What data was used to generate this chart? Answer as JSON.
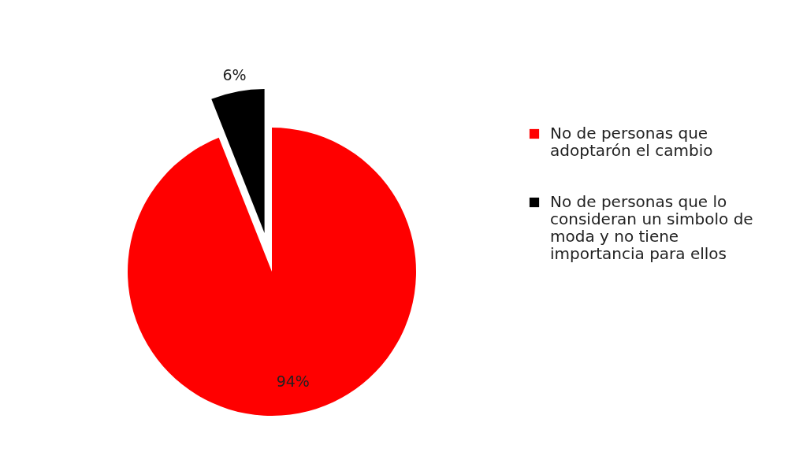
{
  "chart_data": {
    "type": "pie",
    "categories": [
      "No de personas que adoptarón el cambio",
      "No de personas que lo consideran un simbolo de moda y no tiene importancia para ellos"
    ],
    "values": [
      94,
      6
    ],
    "colors": [
      "#ff0000",
      "#000000"
    ],
    "value_labels": [
      "94%",
      "6%"
    ],
    "legend": "right"
  }
}
